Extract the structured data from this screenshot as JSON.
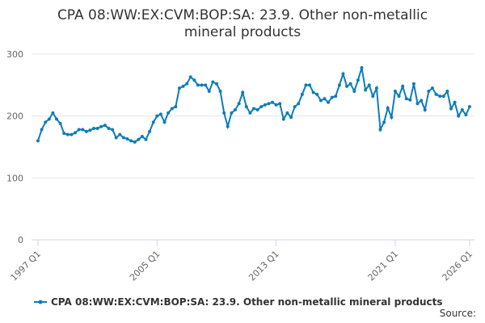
{
  "chart_data": {
    "type": "line",
    "title": "CPA 08:WW:EX:CVM:BOP:SA: 23.9. Other non-metallic mineral products",
    "source": "Source:",
    "categories": [
      "1997 Q1",
      null,
      null,
      null,
      null,
      null,
      null,
      null,
      null,
      null,
      null,
      null,
      null,
      null,
      null,
      null,
      null,
      null,
      null,
      null,
      null,
      null,
      null,
      null,
      null,
      null,
      null,
      null,
      null,
      null,
      null,
      null,
      "2005 Q1",
      null,
      null,
      null,
      null,
      null,
      null,
      null,
      null,
      null,
      null,
      null,
      null,
      null,
      null,
      null,
      null,
      null,
      null,
      null,
      null,
      null,
      null,
      null,
      null,
      null,
      null,
      null,
      null,
      null,
      null,
      null,
      "2013 Q1",
      null,
      null,
      null,
      null,
      null,
      null,
      null,
      null,
      null,
      null,
      null,
      null,
      null,
      null,
      null,
      null,
      null,
      null,
      null,
      null,
      null,
      null,
      null,
      null,
      null,
      null,
      null,
      null,
      null,
      null,
      null,
      "2021 Q1",
      null,
      null,
      null,
      null,
      null,
      null,
      null,
      null,
      null,
      null,
      null,
      null,
      null,
      null,
      null,
      null,
      null,
      null,
      null,
      "2026 Q1"
    ],
    "series": [
      {
        "name": "CPA 08:WW:EX:CVM:BOP:SA: 23.9. Other non-metallic mineral products",
        "color": "#0e7cba",
        "values": [
          160,
          178,
          190,
          195,
          205,
          195,
          188,
          172,
          170,
          170,
          173,
          178,
          178,
          175,
          177,
          180,
          180,
          183,
          185,
          180,
          178,
          165,
          170,
          165,
          163,
          160,
          158,
          162,
          167,
          162,
          175,
          190,
          200,
          203,
          190,
          205,
          212,
          215,
          245,
          248,
          252,
          263,
          258,
          250,
          250,
          250,
          240,
          255,
          252,
          240,
          205,
          183,
          205,
          210,
          220,
          238,
          215,
          205,
          212,
          210,
          215,
          218,
          220,
          222,
          218,
          220,
          195,
          205,
          198,
          215,
          220,
          235,
          250,
          250,
          238,
          235,
          225,
          228,
          222,
          230,
          232,
          250,
          268,
          248,
          252,
          240,
          258,
          278,
          242,
          250,
          232,
          245,
          178,
          190,
          213,
          198,
          240,
          232,
          248,
          228,
          226,
          252,
          220,
          225,
          210,
          240,
          245,
          235,
          232,
          232,
          240,
          212,
          222,
          200,
          210,
          202,
          215
        ]
      }
    ],
    "ylim": [
      0,
      300
    ],
    "yticks": [
      0,
      100,
      200,
      300
    ],
    "grid": true
  }
}
